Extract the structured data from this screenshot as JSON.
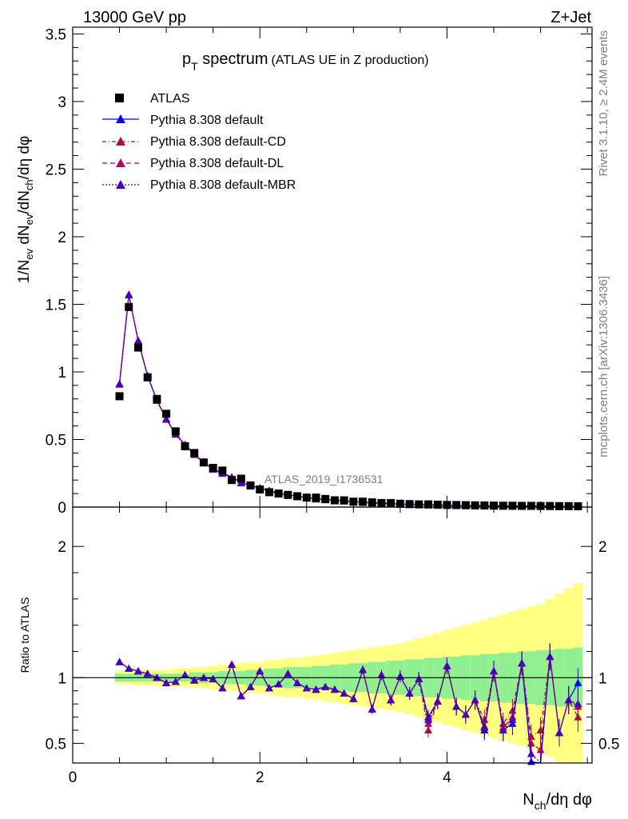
{
  "header": {
    "left": "13000 GeV pp",
    "right": "Z+Jet"
  },
  "side_labels": {
    "rivet": "Rivet 3.1.10, ≥ 2.4M events",
    "mcplots": "mcplots.cern.ch [arXiv:1306.3436]"
  },
  "watermark": "ATLAS_2019_I1736531",
  "chart_data": [
    {
      "panel": "main",
      "type": "scatter",
      "title_main": "p",
      "title_sub": "T",
      "title_rest": " spectrum",
      "title_paren": "(ATLAS UE in Z production)",
      "ylabel": "1/N_ev dN_ev/dN_ch/dη dφ",
      "ylabel_parts": [
        "1/N",
        "ev",
        " dN",
        "ev",
        "/dN",
        "ch",
        "/dη dφ"
      ],
      "xlim": [
        0,
        5.55
      ],
      "ylim": [
        0,
        3.55
      ],
      "yticks": [
        "0",
        "0.5",
        "1",
        "1.5",
        "2",
        "2.5",
        "3",
        "3.5"
      ],
      "ytick_values": [
        0,
        0.5,
        1,
        1.5,
        2,
        2.5,
        3,
        3.5
      ],
      "legend": {
        "position": "top-left",
        "entries": [
          "ATLAS",
          "Pythia 8.308 default",
          "Pythia 8.308 default-CD",
          "Pythia 8.308 default-DL",
          "Pythia 8.308 default-MBR"
        ]
      },
      "colors": {
        "data": "#000000",
        "default": "#0000ff",
        "cd": "#aa1133",
        "dl": "#bb0066",
        "mbr": "#4400bb"
      },
      "x": [
        0.5,
        0.6,
        0.7,
        0.8,
        0.9,
        1.0,
        1.1,
        1.2,
        1.3,
        1.4,
        1.5,
        1.6,
        1.7,
        1.8,
        1.9,
        2.0,
        2.1,
        2.2,
        2.3,
        2.4,
        2.5,
        2.6,
        2.7,
        2.8,
        2.9,
        3.0,
        3.1,
        3.2,
        3.3,
        3.4,
        3.5,
        3.6,
        3.7,
        3.8,
        3.9,
        4.0,
        4.1,
        4.2,
        4.3,
        4.4,
        4.5,
        4.6,
        4.7,
        4.8,
        4.9,
        5.0,
        5.1,
        5.2,
        5.3,
        5.4
      ],
      "series": [
        {
          "name": "ATLAS",
          "values": [
            0.82,
            1.48,
            1.18,
            0.96,
            0.8,
            0.69,
            0.56,
            0.45,
            0.4,
            0.33,
            0.29,
            0.27,
            0.2,
            0.21,
            0.16,
            0.13,
            0.11,
            0.1,
            0.09,
            0.08,
            0.07,
            0.07,
            0.06,
            0.05,
            0.05,
            0.04,
            0.04,
            0.035,
            0.03,
            0.03,
            0.025,
            0.022,
            0.02,
            0.02,
            0.018,
            0.016,
            0.015,
            0.014,
            0.013,
            0.012,
            0.011,
            0.01,
            0.01,
            0.009,
            0.009,
            0.008,
            0.008,
            0.007,
            0.007,
            0.006
          ]
        },
        {
          "name": "Pythia 8.308 default",
          "values": [
            0.91,
            1.57,
            1.23,
            0.97,
            0.79,
            0.65,
            0.54,
            0.46,
            0.39,
            0.33,
            0.28,
            0.25,
            0.22,
            0.18,
            0.16,
            0.14,
            0.12,
            0.1,
            0.09,
            0.08,
            0.07,
            0.06,
            0.055,
            0.05,
            0.045,
            0.04,
            0.035,
            0.031,
            0.028,
            0.025,
            0.022,
            0.02,
            0.018,
            0.016,
            0.014,
            0.013,
            0.012,
            0.011,
            0.01,
            0.009,
            0.008,
            0.008,
            0.007,
            0.007,
            0.006,
            0.006,
            0.005,
            0.005,
            0.005,
            0.004
          ]
        },
        {
          "name": "Pythia 8.308 default-CD",
          "values": [
            0.91,
            1.57,
            1.23,
            0.97,
            0.79,
            0.65,
            0.54,
            0.46,
            0.39,
            0.33,
            0.28,
            0.25,
            0.22,
            0.18,
            0.16,
            0.14,
            0.12,
            0.1,
            0.09,
            0.08,
            0.07,
            0.06,
            0.055,
            0.05,
            0.045,
            0.04,
            0.035,
            0.031,
            0.028,
            0.025,
            0.022,
            0.02,
            0.018,
            0.016,
            0.014,
            0.013,
            0.012,
            0.011,
            0.01,
            0.009,
            0.008,
            0.008,
            0.007,
            0.007,
            0.006,
            0.006,
            0.005,
            0.005,
            0.005,
            0.004
          ]
        },
        {
          "name": "Pythia 8.308 default-DL",
          "values": [
            0.91,
            1.57,
            1.23,
            0.97,
            0.79,
            0.65,
            0.54,
            0.46,
            0.39,
            0.33,
            0.28,
            0.25,
            0.22,
            0.18,
            0.16,
            0.14,
            0.12,
            0.1,
            0.09,
            0.08,
            0.07,
            0.06,
            0.055,
            0.05,
            0.045,
            0.04,
            0.035,
            0.031,
            0.028,
            0.025,
            0.022,
            0.02,
            0.018,
            0.016,
            0.014,
            0.013,
            0.012,
            0.011,
            0.01,
            0.009,
            0.008,
            0.008,
            0.007,
            0.007,
            0.006,
            0.006,
            0.005,
            0.005,
            0.005,
            0.004
          ]
        },
        {
          "name": "Pythia 8.308 default-MBR",
          "values": [
            0.91,
            1.57,
            1.23,
            0.97,
            0.79,
            0.65,
            0.54,
            0.46,
            0.39,
            0.33,
            0.28,
            0.25,
            0.22,
            0.18,
            0.16,
            0.14,
            0.12,
            0.1,
            0.09,
            0.08,
            0.07,
            0.06,
            0.055,
            0.05,
            0.045,
            0.04,
            0.035,
            0.031,
            0.028,
            0.025,
            0.022,
            0.02,
            0.018,
            0.016,
            0.014,
            0.013,
            0.012,
            0.011,
            0.01,
            0.009,
            0.008,
            0.008,
            0.007,
            0.007,
            0.006,
            0.006,
            0.005,
            0.005,
            0.005,
            0.004
          ]
        }
      ]
    },
    {
      "panel": "ratio",
      "type": "line",
      "ylabel": "Ratio to ATLAS",
      "xlabel_parts": [
        "N",
        "ch",
        "/dη dφ"
      ],
      "xlim": [
        0,
        5.55
      ],
      "ylim": [
        0.35,
        2.3
      ],
      "xticks": [
        "0",
        "2",
        "4"
      ],
      "xtick_values": [
        0,
        2,
        4
      ],
      "yticks": [
        "0.5",
        "1",
        "2"
      ],
      "ytick_values": [
        0.5,
        1,
        2
      ],
      "x": [
        0.5,
        0.6,
        0.7,
        0.8,
        0.9,
        1.0,
        1.1,
        1.2,
        1.3,
        1.4,
        1.5,
        1.6,
        1.7,
        1.8,
        1.9,
        2.0,
        2.1,
        2.2,
        2.3,
        2.4,
        2.5,
        2.6,
        2.7,
        2.8,
        2.9,
        3.0,
        3.1,
        3.2,
        3.3,
        3.4,
        3.5,
        3.6,
        3.7,
        3.8,
        3.9,
        4.0,
        4.1,
        4.2,
        4.3,
        4.4,
        4.5,
        4.6,
        4.7,
        4.8,
        4.9,
        5.0,
        5.1,
        5.2,
        5.3,
        5.4
      ],
      "band_stat_half": [
        0.03,
        0.03,
        0.03,
        0.03,
        0.03,
        0.03,
        0.03,
        0.03,
        0.04,
        0.04,
        0.04,
        0.05,
        0.05,
        0.05,
        0.06,
        0.06,
        0.07,
        0.07,
        0.08,
        0.08,
        0.08,
        0.09,
        0.09,
        0.1,
        0.1,
        0.11,
        0.11,
        0.12,
        0.12,
        0.13,
        0.13,
        0.14,
        0.14,
        0.15,
        0.15,
        0.16,
        0.16,
        0.17,
        0.17,
        0.18,
        0.18,
        0.19,
        0.19,
        0.2,
        0.2,
        0.21,
        0.21,
        0.22,
        0.22,
        0.23
      ],
      "band_total_half": [
        0.05,
        0.05,
        0.06,
        0.06,
        0.06,
        0.06,
        0.07,
        0.07,
        0.08,
        0.08,
        0.09,
        0.1,
        0.1,
        0.11,
        0.12,
        0.12,
        0.13,
        0.14,
        0.15,
        0.15,
        0.16,
        0.17,
        0.18,
        0.19,
        0.2,
        0.21,
        0.22,
        0.23,
        0.24,
        0.25,
        0.26,
        0.28,
        0.3,
        0.32,
        0.34,
        0.36,
        0.38,
        0.4,
        0.42,
        0.44,
        0.46,
        0.48,
        0.5,
        0.52,
        0.54,
        0.56,
        0.6,
        0.64,
        0.68,
        0.72
      ],
      "series": [
        {
          "name": "Pythia 8.308 default",
          "values": [
            1.12,
            1.07,
            1.05,
            1.03,
            1.0,
            0.96,
            0.97,
            1.02,
            0.98,
            1.0,
            0.99,
            0.92,
            1.1,
            0.86,
            0.93,
            1.05,
            0.92,
            0.95,
            1.03,
            0.96,
            0.92,
            0.91,
            0.93,
            0.91,
            0.88,
            0.84,
            1.06,
            0.76,
            1.02,
            0.83,
            1.01,
            0.88,
            0.99,
            0.7,
            0.82,
            1.09,
            0.78,
            0.72,
            0.83,
            0.6,
            1.05,
            0.6,
            0.65,
            1.11,
            0.36,
            0.25,
            1.16,
            0.58,
            0.83,
            0.96
          ]
        },
        {
          "name": "Pythia 8.308 default-CD",
          "values": [
            1.12,
            1.07,
            1.05,
            1.03,
            1.0,
            0.96,
            0.97,
            1.02,
            0.98,
            1.0,
            0.99,
            0.92,
            1.1,
            0.86,
            0.93,
            1.05,
            0.92,
            0.95,
            1.03,
            0.96,
            0.92,
            0.91,
            0.93,
            0.91,
            0.88,
            0.84,
            1.06,
            0.76,
            1.02,
            0.83,
            1.01,
            0.88,
            0.99,
            0.6,
            0.82,
            1.09,
            0.78,
            0.72,
            0.83,
            0.68,
            1.05,
            0.65,
            0.75,
            1.11,
            0.55,
            0.6,
            1.16,
            0.58,
            0.83,
            0.7
          ]
        },
        {
          "name": "Pythia 8.308 default-DL",
          "values": [
            1.12,
            1.07,
            1.05,
            1.03,
            1.0,
            0.96,
            0.97,
            1.02,
            0.98,
            1.0,
            0.99,
            0.92,
            1.1,
            0.86,
            0.93,
            1.05,
            0.92,
            0.95,
            1.03,
            0.96,
            0.92,
            0.91,
            0.93,
            0.91,
            0.88,
            0.84,
            1.06,
            0.76,
            1.02,
            0.83,
            1.01,
            0.88,
            0.99,
            0.65,
            0.82,
            1.09,
            0.78,
            0.72,
            0.83,
            0.63,
            1.05,
            0.62,
            0.7,
            1.11,
            0.5,
            0.45,
            1.16,
            0.58,
            0.83,
            0.78
          ]
        },
        {
          "name": "Pythia 8.308 default-MBR",
          "values": [
            1.12,
            1.07,
            1.05,
            1.03,
            1.0,
            0.96,
            0.97,
            1.02,
            0.98,
            1.0,
            0.99,
            0.92,
            1.1,
            0.86,
            0.93,
            1.05,
            0.92,
            0.95,
            1.03,
            0.96,
            0.92,
            0.91,
            0.93,
            0.91,
            0.88,
            0.84,
            1.06,
            0.76,
            1.02,
            0.83,
            1.01,
            0.88,
            0.99,
            0.68,
            0.82,
            1.09,
            0.78,
            0.72,
            0.83,
            0.62,
            1.05,
            0.6,
            0.68,
            1.11,
            0.42,
            0.3,
            1.16,
            0.58,
            0.83,
            0.8
          ]
        }
      ]
    }
  ]
}
